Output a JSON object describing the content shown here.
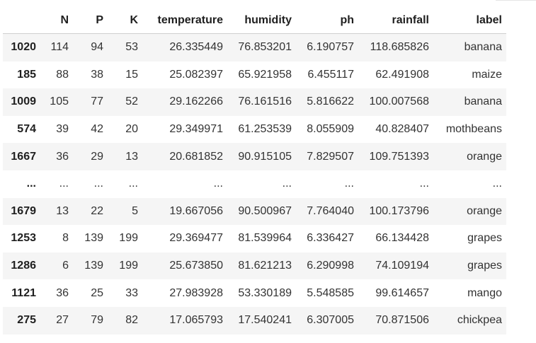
{
  "table": {
    "columns": [
      "",
      "N",
      "P",
      "K",
      "temperature",
      "humidity",
      "ph",
      "rainfall",
      "label"
    ],
    "rows": [
      {
        "index": "1020",
        "N": "114",
        "P": "94",
        "K": "53",
        "temperature": "26.335449",
        "humidity": "76.853201",
        "ph": "6.190757",
        "rainfall": "118.685826",
        "label": "banana"
      },
      {
        "index": "185",
        "N": "88",
        "P": "38",
        "K": "15",
        "temperature": "25.082397",
        "humidity": "65.921958",
        "ph": "6.455117",
        "rainfall": "62.491908",
        "label": "maize"
      },
      {
        "index": "1009",
        "N": "105",
        "P": "77",
        "K": "52",
        "temperature": "29.162266",
        "humidity": "76.161516",
        "ph": "5.816622",
        "rainfall": "100.007568",
        "label": "banana"
      },
      {
        "index": "574",
        "N": "39",
        "P": "42",
        "K": "20",
        "temperature": "29.349971",
        "humidity": "61.253539",
        "ph": "8.055909",
        "rainfall": "40.828407",
        "label": "mothbeans"
      },
      {
        "index": "1667",
        "N": "36",
        "P": "29",
        "K": "13",
        "temperature": "20.681852",
        "humidity": "90.915105",
        "ph": "7.829507",
        "rainfall": "109.751393",
        "label": "orange"
      },
      {
        "index": "...",
        "N": "...",
        "P": "...",
        "K": "...",
        "temperature": "...",
        "humidity": "...",
        "ph": "...",
        "rainfall": "...",
        "label": "..."
      },
      {
        "index": "1679",
        "N": "13",
        "P": "22",
        "K": "5",
        "temperature": "19.667056",
        "humidity": "90.500967",
        "ph": "7.764040",
        "rainfall": "100.173796",
        "label": "orange"
      },
      {
        "index": "1253",
        "N": "8",
        "P": "139",
        "K": "199",
        "temperature": "29.369477",
        "humidity": "81.539964",
        "ph": "6.336427",
        "rainfall": "66.134428",
        "label": "grapes"
      },
      {
        "index": "1286",
        "N": "6",
        "P": "139",
        "K": "199",
        "temperature": "25.673850",
        "humidity": "81.621213",
        "ph": "6.290998",
        "rainfall": "74.109194",
        "label": "grapes"
      },
      {
        "index": "1121",
        "N": "36",
        "P": "25",
        "K": "33",
        "temperature": "27.983928",
        "humidity": "53.330189",
        "ph": "5.548585",
        "rainfall": "99.614657",
        "label": "mango"
      },
      {
        "index": "275",
        "N": "27",
        "P": "79",
        "K": "82",
        "temperature": "17.065793",
        "humidity": "17.540241",
        "ph": "6.307005",
        "rainfall": "70.871506",
        "label": "chickpea"
      }
    ]
  }
}
